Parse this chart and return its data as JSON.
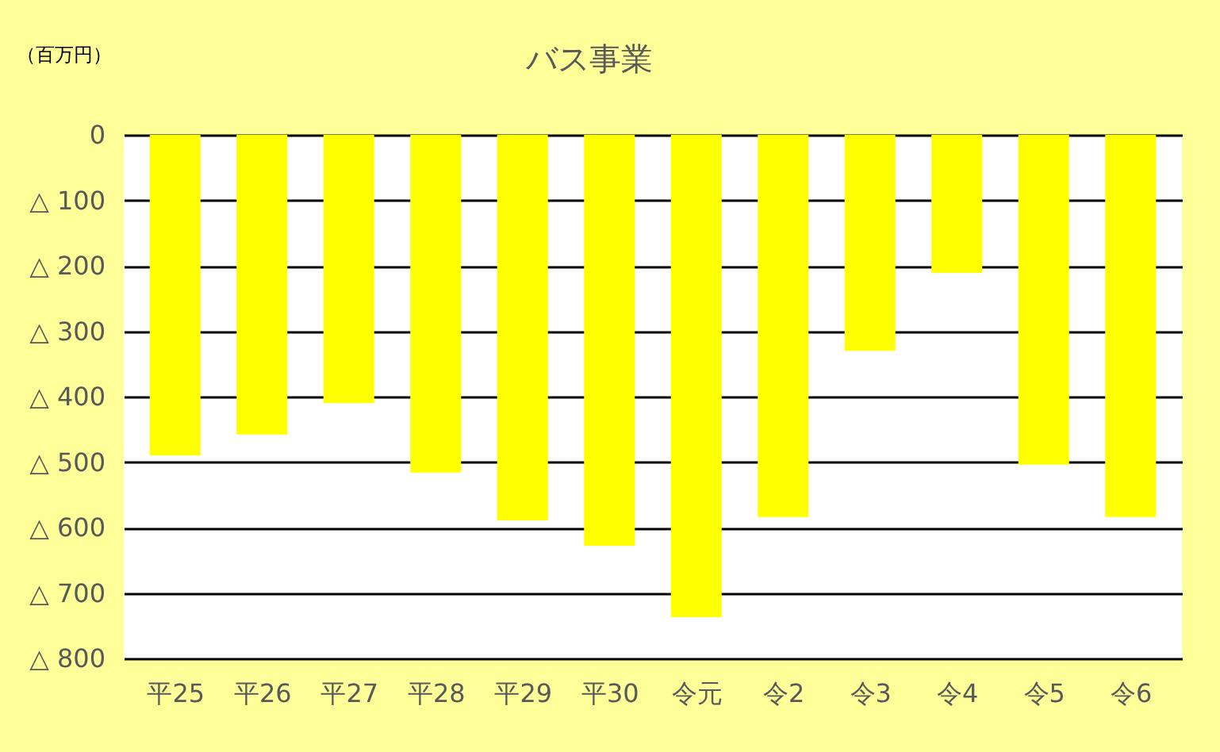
{
  "chart_data": {
    "type": "bar",
    "title": "バス事業",
    "ylabel": "（百万円）",
    "categories": [
      "平25",
      "平26",
      "平27",
      "平28",
      "平29",
      "平30",
      "令元",
      "令2",
      "令3",
      "令4",
      "令5",
      "令6"
    ],
    "values": [
      -490,
      -458,
      -410,
      -516,
      -589,
      -628,
      -737,
      -584,
      -330,
      -211,
      -504,
      -584
    ],
    "color": "#ffff00",
    "ylim": [
      -800,
      0
    ],
    "yticks": [
      {
        "value": -800,
        "label": "△ 800"
      },
      {
        "value": -700,
        "label": "△ 700"
      },
      {
        "value": -600,
        "label": "△ 600"
      },
      {
        "value": -500,
        "label": "△ 500"
      },
      {
        "value": -400,
        "label": "△ 400"
      },
      {
        "value": -300,
        "label": "△ 300"
      },
      {
        "value": -200,
        "label": "△ 200"
      },
      {
        "value": -100,
        "label": "△ 100"
      },
      0
    ],
    "grid": "y"
  }
}
